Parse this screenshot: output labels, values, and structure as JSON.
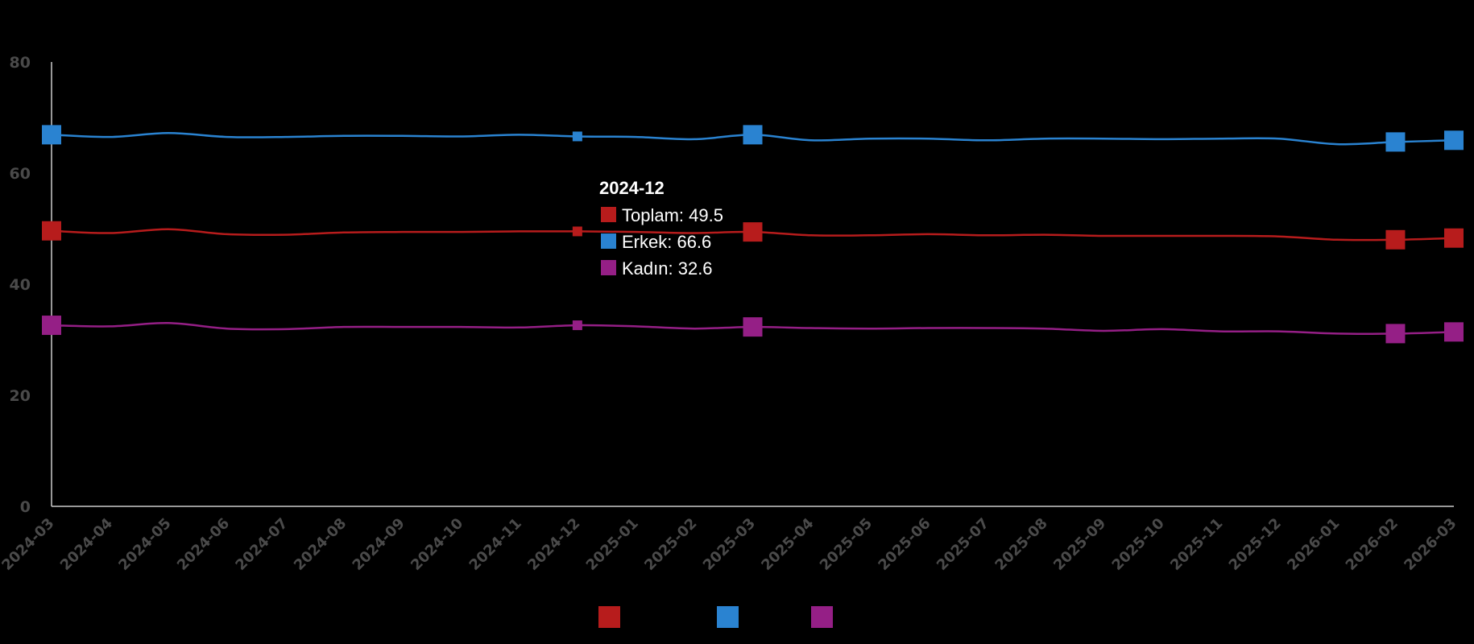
{
  "chart_data": {
    "type": "line",
    "x": [
      "2024-03",
      "2024-04",
      "2024-05",
      "2024-06",
      "2024-07",
      "2024-08",
      "2024-09",
      "2024-10",
      "2024-11",
      "2024-12",
      "2025-01",
      "2025-02",
      "2025-03",
      "2025-04",
      "2025-05",
      "2025-06",
      "2025-07",
      "2025-08",
      "2025-09",
      "2025-10",
      "2025-11",
      "2025-12",
      "2026-01",
      "2026-02",
      "2026-03"
    ],
    "series": [
      {
        "name": "Toplam",
        "color": "#b71c1c",
        "values": [
          49.6,
          49.2,
          49.9,
          49.0,
          48.9,
          49.3,
          49.4,
          49.4,
          49.5,
          49.5,
          49.4,
          49.2,
          49.4,
          48.8,
          48.8,
          49.0,
          48.8,
          48.9,
          48.7,
          48.7,
          48.7,
          48.6,
          48.0,
          48.0,
          48.3
        ]
      },
      {
        "name": "Erkek",
        "color": "#2a83d1",
        "values": [
          66.9,
          66.5,
          67.2,
          66.5,
          66.5,
          66.7,
          66.7,
          66.6,
          66.9,
          66.6,
          66.5,
          66.1,
          66.9,
          65.9,
          66.2,
          66.2,
          65.9,
          66.2,
          66.2,
          66.1,
          66.2,
          66.2,
          65.2,
          65.6,
          65.9
        ]
      },
      {
        "name": "Kadın",
        "color": "#951f86",
        "values": [
          32.6,
          32.4,
          33.0,
          32.0,
          31.9,
          32.3,
          32.3,
          32.3,
          32.2,
          32.6,
          32.4,
          32.0,
          32.3,
          32.1,
          32.0,
          32.1,
          32.1,
          32.0,
          31.6,
          31.9,
          31.5,
          31.5,
          31.1,
          31.1,
          31.4
        ]
      }
    ],
    "ylim": [
      0,
      80
    ],
    "yticks": [
      0,
      20,
      40,
      60,
      80
    ],
    "markers": [
      0,
      9,
      12,
      23,
      24
    ],
    "legend_position": "bottom",
    "tooltip": {
      "index": 9,
      "title": "2024-12",
      "lines": [
        "Toplam: 49.5",
        "Erkek: 66.6",
        "Kadın: 32.6"
      ]
    }
  }
}
